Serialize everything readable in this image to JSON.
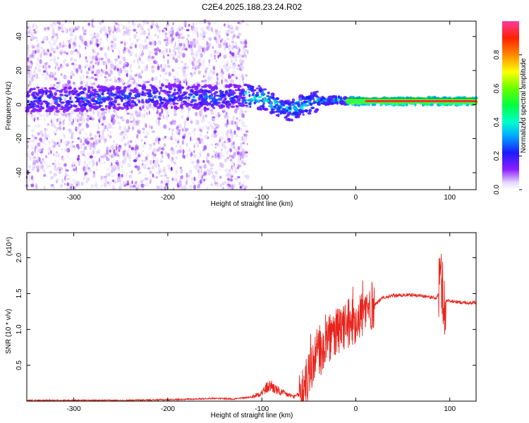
{
  "title": "C2E4.2025.188.23.24.R02",
  "chart_data": [
    {
      "type": "heatmap",
      "xlabel": "Height of straight line (km)",
      "ylabel": "Frequency (Hz)",
      "xlim": [
        -350,
        128
      ],
      "ylim": [
        -50,
        49
      ],
      "xticks": [
        -300,
        -200,
        -100,
        0,
        100
      ],
      "yticks": [
        -40,
        -20,
        0,
        20,
        40
      ],
      "colorbar": {
        "label": "Normalized spectral amplitude",
        "range": [
          0,
          1
        ],
        "ticks": [
          "0.0",
          "0.2",
          "0.4",
          "0.6",
          "0.8"
        ]
      },
      "ridge": {
        "x": [
          -350,
          -300,
          -250,
          -200,
          -150,
          -120,
          -100,
          -80,
          -70,
          -60,
          -50,
          -40,
          -30,
          -20,
          -10,
          0,
          20,
          50,
          90,
          128
        ],
        "frequency": [
          3,
          3,
          4,
          5,
          4,
          5,
          4,
          -2,
          -4,
          -1,
          0,
          2,
          2,
          3,
          2,
          2,
          2,
          2,
          2,
          2
        ]
      }
    },
    {
      "type": "line",
      "xlabel": "Height of straight line (km)",
      "ylabel": "SNR (10 * v/v)",
      "y_multiplier": "(x10⁴)",
      "xlim": [
        -350,
        128
      ],
      "ylim": [
        0,
        2.35
      ],
      "xticks": [
        -300,
        -200,
        -100,
        0,
        100
      ],
      "yticks": [
        "0.5",
        "1.0",
        "1.5",
        "2.0"
      ],
      "yticks_values": [
        0.5,
        1.0,
        1.5,
        2.0
      ],
      "color": "#e8241c",
      "series": [
        {
          "x": [
            -350,
            -300,
            -250,
            -200,
            -170,
            -150,
            -130,
            -110,
            -100,
            -95,
            -90,
            -85,
            -80,
            -75,
            -70,
            -65,
            -60,
            -55,
            -50,
            -45,
            -40,
            -35,
            -30,
            -25,
            -20,
            -15,
            -10,
            -5,
            0,
            5,
            10,
            15,
            20,
            25,
            30,
            40,
            50,
            60,
            70,
            80,
            85,
            88,
            90,
            92,
            93,
            95,
            100,
            110,
            120,
            128
          ],
          "values": [
            0.01,
            0.01,
            0.01,
            0.02,
            0.03,
            0.04,
            0.03,
            0.06,
            0.12,
            0.18,
            0.22,
            0.16,
            0.12,
            0.1,
            0.08,
            0.06,
            0.1,
            0.2,
            0.35,
            0.55,
            0.7,
            0.75,
            0.85,
            0.9,
            0.95,
            1.0,
            1.05,
            1.1,
            1.15,
            1.2,
            1.25,
            1.3,
            1.35,
            1.4,
            1.45,
            1.47,
            1.48,
            1.48,
            1.47,
            1.45,
            1.43,
            1.5,
            1.6,
            1.7,
            1.2,
            1.4,
            1.4,
            1.38,
            1.37,
            1.38
          ]
        }
      ]
    }
  ]
}
